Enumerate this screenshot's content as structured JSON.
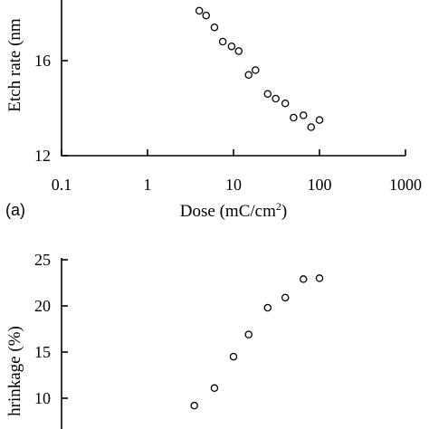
{
  "chart_data": [
    {
      "type": "scatter",
      "panel_label": "(a)",
      "ylabel": "Etch rate (nm",
      "xlabel_base": "Dose (mC/cm",
      "xlabel_sup": "2",
      "xlabel_close": ")",
      "xscale": "log",
      "xlim": [
        0.1,
        1000
      ],
      "ylim": [
        12,
        20
      ],
      "xticks": [
        "0.1",
        "1",
        "10",
        "100",
        "1000"
      ],
      "yticks": [
        "12",
        "16"
      ],
      "grid": false,
      "x": [
        4,
        4.8,
        6,
        7.5,
        9.5,
        11.5,
        15,
        18,
        25,
        31,
        40,
        50,
        65,
        80,
        100
      ],
      "y": [
        18.1,
        17.9,
        17.4,
        16.8,
        16.6,
        16.4,
        15.4,
        15.6,
        14.6,
        14.4,
        14.2,
        13.6,
        13.7,
        13.2,
        13.5
      ]
    },
    {
      "type": "scatter",
      "ylabel": "hrinkage (%)",
      "yticks": [
        "10",
        "15",
        "20",
        "25"
      ],
      "ylim": [
        5,
        25
      ],
      "xscale": "log",
      "xlim": [
        0.1,
        1000
      ],
      "grid": false,
      "x": [
        3.5,
        6,
        10,
        15,
        25,
        40,
        65,
        100
      ],
      "y": [
        9.2,
        11.1,
        14.5,
        16.9,
        19.8,
        20.9,
        22.9,
        23.0
      ]
    }
  ]
}
